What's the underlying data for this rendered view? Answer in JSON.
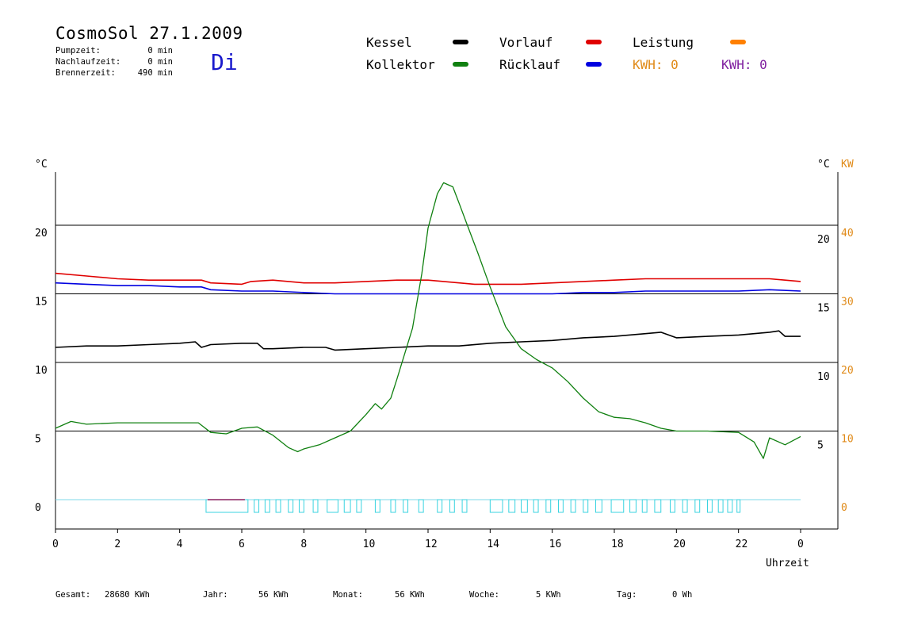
{
  "header": {
    "title": "CosmoSol 27.1.2009",
    "day": "Di",
    "stats": [
      {
        "label": "Pumpzeit:",
        "value": "0 min"
      },
      {
        "label": "Nachlaufzeit:",
        "value": "0 min"
      },
      {
        "label": "Brennerzeit:",
        "value": "490 min"
      }
    ]
  },
  "legend": {
    "items": [
      {
        "label": "Kessel",
        "color": "#000000"
      },
      {
        "label": "Kollektor",
        "color": "#108010"
      },
      {
        "label": "Vorlauf",
        "color": "#e00000"
      },
      {
        "label": "Rücklauf",
        "color": "#0000e0"
      },
      {
        "label": "Leistung",
        "color": "#ff8000"
      }
    ],
    "kwh_a": {
      "text": "KWH: 0",
      "color": "#e08a18"
    },
    "kwh_b": {
      "text": "KWH: 0",
      "color": "#8020a0"
    }
  },
  "footer": [
    {
      "label": "Gesamt:",
      "value": "28680 KWh"
    },
    {
      "label": "Jahr:",
      "value": "56 KWh"
    },
    {
      "label": "Monat:",
      "value": "56 KWh"
    },
    {
      "label": "Woche:",
      "value": "5 KWh"
    },
    {
      "label": "Tag:",
      "value": "0 Wh"
    }
  ],
  "chart_data": {
    "type": "line",
    "xlabel": "Uhrzeit",
    "left_unit": "°C",
    "right_unit": "°C",
    "right2_unit": "KW",
    "x_ticks": [
      "0",
      "2",
      "4",
      "6",
      "8",
      "10",
      "12",
      "14",
      "16",
      "18",
      "20",
      "22",
      "0"
    ],
    "y_left_ticks": [
      "0",
      "5",
      "10",
      "15",
      "20"
    ],
    "y_right_ticks": [
      "5",
      "10",
      "15",
      "20"
    ],
    "y_right2_ticks": [
      "0",
      "10",
      "20",
      "30",
      "40"
    ],
    "xlim": [
      0,
      24
    ],
    "ylim": [
      -2,
      24.5
    ],
    "grid_lines_y": [
      5,
      10,
      15,
      20
    ],
    "series": [
      {
        "name": "Vorlauf",
        "color": "#e00000",
        "x": [
          0,
          1,
          2,
          3,
          4,
          4.7,
          5,
          6,
          6.3,
          7,
          8,
          9,
          10,
          11,
          12,
          13,
          13.5,
          14,
          15,
          16,
          17,
          18,
          19,
          20,
          21,
          22,
          23,
          23.5,
          24
        ],
        "y": [
          16.5,
          16.3,
          16.1,
          16.0,
          16.0,
          16.0,
          15.8,
          15.7,
          15.9,
          16.0,
          15.8,
          15.8,
          15.9,
          16.0,
          16.0,
          15.8,
          15.7,
          15.7,
          15.7,
          15.8,
          15.9,
          16.0,
          16.1,
          16.1,
          16.1,
          16.1,
          16.1,
          16.0,
          15.9
        ]
      },
      {
        "name": "Rücklauf",
        "color": "#0000e0",
        "x": [
          0,
          1,
          2,
          3,
          4,
          4.7,
          5,
          6,
          7,
          8,
          9,
          10,
          11,
          12,
          13,
          14,
          15,
          16,
          17,
          18,
          19,
          20,
          21,
          22,
          23,
          24
        ],
        "y": [
          15.8,
          15.7,
          15.6,
          15.6,
          15.5,
          15.5,
          15.3,
          15.2,
          15.2,
          15.1,
          15.0,
          15.0,
          15.0,
          15.0,
          15.0,
          15.0,
          15.0,
          15.0,
          15.1,
          15.1,
          15.2,
          15.2,
          15.2,
          15.2,
          15.3,
          15.2
        ]
      },
      {
        "name": "Kessel",
        "color": "#000000",
        "x": [
          0,
          1,
          2,
          3,
          4,
          4.5,
          4.7,
          5,
          6,
          6.5,
          6.7,
          7,
          8,
          8.7,
          9,
          10,
          11,
          12,
          13,
          14,
          15,
          16,
          17,
          18,
          19,
          19.5,
          20,
          21,
          22,
          23,
          23.3,
          23.5,
          24
        ],
        "y": [
          11.1,
          11.2,
          11.2,
          11.3,
          11.4,
          11.5,
          11.1,
          11.3,
          11.4,
          11.4,
          11.0,
          11.0,
          11.1,
          11.1,
          10.9,
          11.0,
          11.1,
          11.2,
          11.2,
          11.4,
          11.5,
          11.6,
          11.8,
          11.9,
          12.1,
          12.2,
          11.8,
          11.9,
          12.0,
          12.2,
          12.3,
          11.9,
          11.9
        ]
      },
      {
        "name": "Kollektor",
        "color": "#108010",
        "x": [
          0,
          0.5,
          1,
          2,
          3,
          4,
          4.6,
          5,
          5.5,
          6,
          6.5,
          7,
          7.5,
          7.8,
          8,
          8.5,
          9,
          9.5,
          10,
          10.3,
          10.5,
          10.8,
          11,
          11.5,
          11.8,
          12,
          12.3,
          12.5,
          12.8,
          13,
          13.3,
          13.6,
          14,
          14.5,
          15,
          15.5,
          16,
          16.5,
          17,
          17.5,
          18,
          18.5,
          19,
          19.5,
          20,
          21,
          22,
          22.5,
          22.8,
          23,
          23.5,
          24
        ],
        "y": [
          5.2,
          5.7,
          5.5,
          5.6,
          5.6,
          5.6,
          5.6,
          4.9,
          4.8,
          5.2,
          5.3,
          4.7,
          3.8,
          3.5,
          3.7,
          4.0,
          4.5,
          5.0,
          6.2,
          7.0,
          6.6,
          7.4,
          8.8,
          12.5,
          16.5,
          19.8,
          22.3,
          23.1,
          22.8,
          21.6,
          19.8,
          18.0,
          15.5,
          12.6,
          11.0,
          10.2,
          9.6,
          8.6,
          7.4,
          6.4,
          6.0,
          5.9,
          5.6,
          5.2,
          5.0,
          5.0,
          4.9,
          4.2,
          3.0,
          4.5,
          4.0,
          4.6
        ]
      },
      {
        "name": "Leistung",
        "color": "#ff8000",
        "x": [
          0,
          24
        ],
        "y": [
          0,
          0
        ]
      }
    ],
    "grey_legend_color": "#808080"
  }
}
